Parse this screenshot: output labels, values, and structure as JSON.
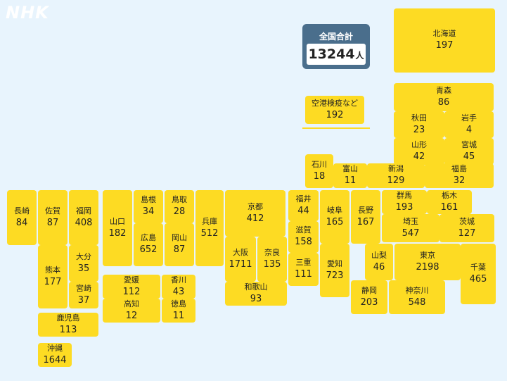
{
  "logo": "NHK",
  "total": {
    "label": "全国合計",
    "value": "13244",
    "unit": "人"
  },
  "airport": {
    "name": "空港検疫など",
    "count": "192"
  },
  "prefectures": [
    {
      "name": "北海道",
      "count": "197"
    },
    {
      "name": "青森",
      "count": "86"
    },
    {
      "name": "秋田",
      "count": "23"
    },
    {
      "name": "岩手",
      "count": "4"
    },
    {
      "name": "山形",
      "count": "42"
    },
    {
      "name": "宮城",
      "count": "45"
    },
    {
      "name": "石川",
      "count": "18"
    },
    {
      "name": "富山",
      "count": "11"
    },
    {
      "name": "新潟",
      "count": "129"
    },
    {
      "name": "福島",
      "count": "32"
    },
    {
      "name": "長崎",
      "count": "84"
    },
    {
      "name": "佐賀",
      "count": "87"
    },
    {
      "name": "福岡",
      "count": "408"
    },
    {
      "name": "山口",
      "count": "182"
    },
    {
      "name": "島根",
      "count": "34"
    },
    {
      "name": "鳥取",
      "count": "28"
    },
    {
      "name": "広島",
      "count": "652"
    },
    {
      "name": "岡山",
      "count": "87"
    },
    {
      "name": "兵庫",
      "count": "512"
    },
    {
      "name": "京都",
      "count": "412"
    },
    {
      "name": "福井",
      "count": "44"
    },
    {
      "name": "滋賀",
      "count": "158"
    },
    {
      "name": "岐阜",
      "count": "165"
    },
    {
      "name": "長野",
      "count": "167"
    },
    {
      "name": "群馬",
      "count": "193"
    },
    {
      "name": "栃木",
      "count": "161"
    },
    {
      "name": "埼玉",
      "count": "547"
    },
    {
      "name": "茨城",
      "count": "127"
    },
    {
      "name": "大阪",
      "count": "1711"
    },
    {
      "name": "奈良",
      "count": "135"
    },
    {
      "name": "三重",
      "count": "111"
    },
    {
      "name": "和歌山",
      "count": "93"
    },
    {
      "name": "愛知",
      "count": "723"
    },
    {
      "name": "山梨",
      "count": "46"
    },
    {
      "name": "東京",
      "count": "2198"
    },
    {
      "name": "千葉",
      "count": "465"
    },
    {
      "name": "静岡",
      "count": "203"
    },
    {
      "name": "神奈川",
      "count": "548"
    },
    {
      "name": "熊本",
      "count": "177"
    },
    {
      "name": "大分",
      "count": "35"
    },
    {
      "name": "宮崎",
      "count": "37"
    },
    {
      "name": "鹿児島",
      "count": "113"
    },
    {
      "name": "愛媛",
      "count": "112"
    },
    {
      "name": "香川",
      "count": "43"
    },
    {
      "name": "高知",
      "count": "12"
    },
    {
      "name": "徳島",
      "count": "11"
    },
    {
      "name": "沖縄",
      "count": "1644"
    }
  ]
}
